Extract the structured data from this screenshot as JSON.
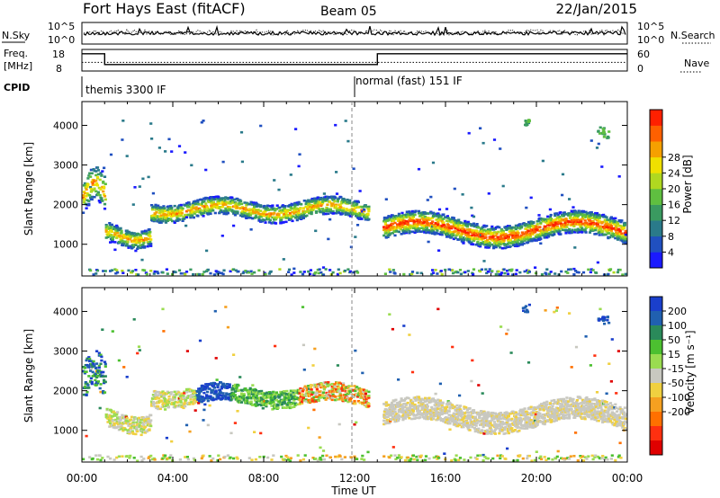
{
  "header": {
    "station": "Fort Hays East (fitACF)",
    "beam": "Beam 05",
    "date": "22/Jan/2015"
  },
  "noise_panel": {
    "left_label": "N.Sky",
    "right_label": "N.Search",
    "left_ticks": [
      "10^5",
      "10^0"
    ],
    "right_ticks": [
      "10^5",
      "10^0"
    ]
  },
  "freq_panel": {
    "left_label_1": "Freq.",
    "left_label_2": "[MHz]",
    "right_label": "Nave",
    "left_ticks": [
      "18",
      "8"
    ],
    "right_ticks": [
      "60",
      "0"
    ]
  },
  "cpid": {
    "label": "CPID",
    "modes": [
      {
        "text": "themis 3300 IF",
        "start_hour": 0
      },
      {
        "text": "normal (fast) 151 IF",
        "start_hour": 12
      }
    ]
  },
  "chart_data": [
    {
      "type": "line",
      "name": "noise",
      "series": [
        {
          "name": "N.Sky",
          "style": "solid"
        },
        {
          "name": "N.Search",
          "style": "dotted"
        }
      ]
    },
    {
      "type": "line",
      "name": "frequency",
      "series": [
        {
          "name": "Freq. [MHz]",
          "x_hours": [
            0,
            1,
            1,
            13,
            13,
            24
          ],
          "values": [
            16,
            16,
            11,
            11,
            16,
            16
          ]
        },
        {
          "name": "Nave",
          "style": "dotted",
          "x_hours": [
            0,
            24
          ],
          "values": [
            12,
            12
          ]
        }
      ],
      "ylim": [
        8,
        18
      ],
      "y2lim": [
        0,
        60
      ]
    },
    {
      "type": "heatmap",
      "name": "power",
      "ylabel": "Slant Range [km]",
      "ylim": [
        200,
        4600
      ],
      "xlim_hours": [
        0,
        24
      ],
      "yticks": [
        "1000",
        "2000",
        "3000",
        "4000"
      ],
      "colorbar": {
        "label": "Power [dB]",
        "ticks": [
          "4",
          "8",
          "12",
          "16",
          "20",
          "24",
          "28"
        ],
        "colors": [
          "#1a1aff",
          "#2050c0",
          "#2a7a8a",
          "#3a9a60",
          "#5fbf40",
          "#b0d820",
          "#f0e000",
          "#f5a000",
          "#ff6000",
          "#ff2000"
        ]
      }
    },
    {
      "type": "heatmap",
      "name": "velocity",
      "ylabel": "Slant Range [km]",
      "ylim": [
        200,
        4600
      ],
      "xlim_hours": [
        0,
        24
      ],
      "yticks": [
        "1000",
        "2000",
        "3000",
        "4000"
      ],
      "colorbar": {
        "label": "Velocity [m s⁻¹]",
        "ticks": [
          "200",
          "100",
          "50",
          "15",
          "-15",
          "-50",
          "-100",
          "-200"
        ],
        "colors": [
          "#1a3fcc",
          "#2060b0",
          "#2a8a5a",
          "#4cc030",
          "#9adc50",
          "#c8c8c0",
          "#f0d040",
          "#f5a020",
          "#ff7000",
          "#ff3010",
          "#e00000"
        ]
      }
    }
  ],
  "x_axis": {
    "label": "Time UT",
    "ticks": [
      "00:00",
      "04:00",
      "08:00",
      "12:00",
      "16:00",
      "20:00",
      "00:00"
    ]
  }
}
